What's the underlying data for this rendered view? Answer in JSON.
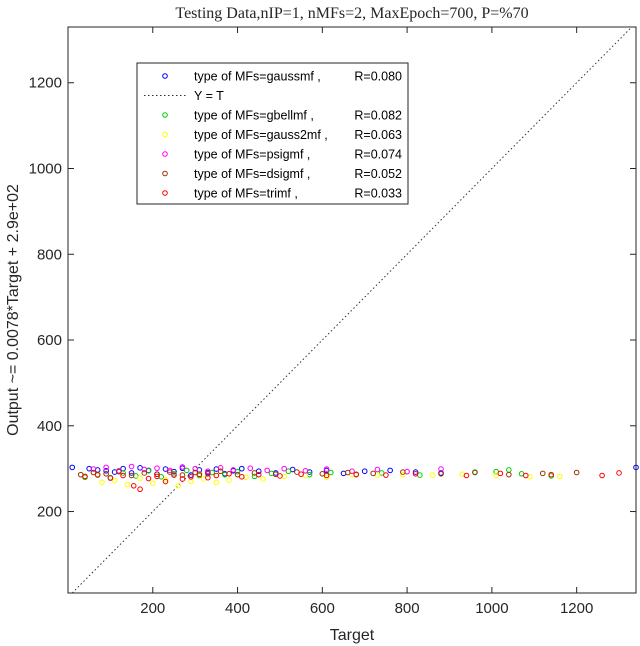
{
  "chart_data": {
    "type": "scatter",
    "title": "Testing Data,nIP=1, nMFs=2, MaxEpoch=700, P=%70",
    "xlabel": "Target",
    "ylabel": "Output ~= 0.0078*Target + 2.9e+02",
    "xlim": [
      0,
      1340
    ],
    "ylim": [
      10,
      1330
    ],
    "xticks": [
      200,
      400,
      600,
      800,
      1000,
      1200
    ],
    "yticks": [
      200,
      400,
      600,
      800,
      1000,
      1200
    ],
    "grid": false,
    "legend_position": "top-left",
    "reference_line": {
      "label": "Y = T",
      "style": "dotted",
      "color": "#333333"
    },
    "series": [
      {
        "name": "type of MFs=gaussmf ,",
        "r_label": "R=0.080",
        "color": "#0000ff",
        "points": [
          [
            10,
            303
          ],
          [
            50,
            300
          ],
          [
            70,
            297
          ],
          [
            90,
            295
          ],
          [
            110,
            292
          ],
          [
            130,
            300
          ],
          [
            150,
            290
          ],
          [
            170,
            302
          ],
          [
            190,
            296
          ],
          [
            210,
            287
          ],
          [
            230,
            299
          ],
          [
            250,
            293
          ],
          [
            270,
            301
          ],
          [
            290,
            285
          ],
          [
            310,
            297
          ],
          [
            330,
            291
          ],
          [
            350,
            299
          ],
          [
            370,
            288
          ],
          [
            390,
            295
          ],
          [
            410,
            300
          ],
          [
            450,
            294
          ],
          [
            490,
            290
          ],
          [
            530,
            298
          ],
          [
            570,
            292
          ],
          [
            610,
            296
          ],
          [
            650,
            289
          ],
          [
            700,
            294
          ],
          [
            760,
            296
          ],
          [
            820,
            292
          ],
          [
            880,
            290
          ],
          [
            1340,
            303
          ]
        ]
      },
      {
        "name": "type of MFs=gbellmf ,",
        "r_label": "R=0.082",
        "color": "#00cc00",
        "points": [
          [
            40,
            280
          ],
          [
            70,
            285
          ],
          [
            100,
            279
          ],
          [
            130,
            290
          ],
          [
            160,
            283
          ],
          [
            190,
            295
          ],
          [
            220,
            281
          ],
          [
            250,
            288
          ],
          [
            280,
            296
          ],
          [
            310,
            284
          ],
          [
            340,
            291
          ],
          [
            370,
            286
          ],
          [
            400,
            293
          ],
          [
            440,
            282
          ],
          [
            480,
            289
          ],
          [
            520,
            294
          ],
          [
            570,
            286
          ],
          [
            620,
            291
          ],
          [
            680,
            287
          ],
          [
            740,
            290
          ],
          [
            830,
            285
          ],
          [
            960,
            292
          ],
          [
            1010,
            293
          ],
          [
            1040,
            297
          ],
          [
            1070,
            288
          ],
          [
            1140,
            283
          ]
        ]
      },
      {
        "name": "type of MFs=gauss2mf ,",
        "r_label": "R=0.063",
        "color": "#ffff00",
        "points": [
          [
            80,
            268
          ],
          [
            110,
            272
          ],
          [
            140,
            263
          ],
          [
            170,
            278
          ],
          [
            200,
            266
          ],
          [
            230,
            274
          ],
          [
            260,
            260
          ],
          [
            290,
            270
          ],
          [
            320,
            276
          ],
          [
            350,
            268
          ],
          [
            380,
            273
          ],
          [
            420,
            280
          ],
          [
            460,
            276
          ],
          [
            510,
            282
          ],
          [
            560,
            284
          ],
          [
            610,
            280
          ],
          [
            670,
            286
          ],
          [
            730,
            285
          ],
          [
            790,
            286
          ],
          [
            860,
            285
          ],
          [
            930,
            287
          ],
          [
            1010,
            284
          ],
          [
            1090,
            281
          ],
          [
            1160,
            282
          ]
        ]
      },
      {
        "name": "type of MFs=psigmf ,",
        "r_label": "R=0.074",
        "color": "#ff00ff",
        "points": [
          [
            60,
            299
          ],
          [
            90,
            303
          ],
          [
            120,
            295
          ],
          [
            150,
            305
          ],
          [
            180,
            298
          ],
          [
            210,
            301
          ],
          [
            240,
            296
          ],
          [
            270,
            304
          ],
          [
            300,
            300
          ],
          [
            330,
            294
          ],
          [
            360,
            302
          ],
          [
            390,
            297
          ],
          [
            430,
            301
          ],
          [
            470,
            296
          ],
          [
            510,
            300
          ],
          [
            560,
            295
          ],
          [
            610,
            299
          ],
          [
            670,
            294
          ],
          [
            730,
            298
          ],
          [
            800,
            293
          ],
          [
            880,
            299
          ]
        ]
      },
      {
        "name": "type of MFs=dsigmf ,",
        "r_label": "R=0.052",
        "color": "#993300",
        "points": [
          [
            30,
            286
          ],
          [
            60,
            291
          ],
          [
            90,
            288
          ],
          [
            120,
            293
          ],
          [
            150,
            284
          ],
          [
            180,
            290
          ],
          [
            210,
            287
          ],
          [
            240,
            292
          ],
          [
            270,
            285
          ],
          [
            300,
            291
          ],
          [
            330,
            288
          ],
          [
            360,
            294
          ],
          [
            400,
            286
          ],
          [
            440,
            290
          ],
          [
            490,
            287
          ],
          [
            540,
            292
          ],
          [
            600,
            288
          ],
          [
            660,
            291
          ],
          [
            720,
            289
          ],
          [
            790,
            292
          ],
          [
            880,
            288
          ],
          [
            960,
            291
          ],
          [
            1040,
            286
          ],
          [
            1120,
            289
          ],
          [
            1200,
            291
          ]
        ]
      },
      {
        "name": "type of MFs=trimf ,",
        "r_label": "R=0.033",
        "color": "#ff0000",
        "points": [
          [
            40,
            282
          ],
          [
            70,
            286
          ],
          [
            100,
            278
          ],
          [
            130,
            284
          ],
          [
            155,
            260
          ],
          [
            170,
            252
          ],
          [
            190,
            277
          ],
          [
            210,
            282
          ],
          [
            230,
            270
          ],
          [
            250,
            285
          ],
          [
            270,
            276
          ],
          [
            290,
            281
          ],
          [
            310,
            287
          ],
          [
            330,
            279
          ],
          [
            350,
            284
          ],
          [
            380,
            288
          ],
          [
            410,
            281
          ],
          [
            450,
            286
          ],
          [
            500,
            283
          ],
          [
            550,
            287
          ],
          [
            610,
            284
          ],
          [
            680,
            286
          ],
          [
            750,
            285
          ],
          [
            820,
            288
          ],
          [
            940,
            284
          ],
          [
            1020,
            289
          ],
          [
            1080,
            284
          ],
          [
            1140,
            286
          ],
          [
            1260,
            284
          ],
          [
            1300,
            290
          ]
        ]
      }
    ]
  }
}
